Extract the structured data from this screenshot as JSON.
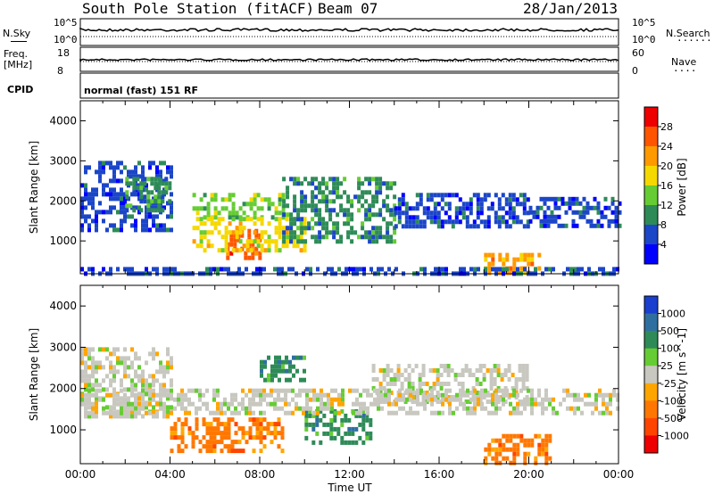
{
  "header": {
    "station_title": "South Pole Station (fitACF)",
    "beam": "Beam 07",
    "date": "28/Jan/2013"
  },
  "side_labels": {
    "nsky": "N.Sky",
    "nsearch": "N.Search",
    "freq_line1": "Freq.",
    "freq_line2": "[MHz]",
    "nave": "Nave",
    "cpid": "CPID",
    "nsky_ticks": [
      "10^5",
      "10^0"
    ],
    "nsearch_ticks": [
      "10^5",
      "10^0"
    ],
    "freq_ticks": [
      "18",
      "8"
    ],
    "nave_ticks": [
      "60",
      "0"
    ]
  },
  "mode_text": "normal (fast) 151 RF",
  "chart_data": [
    {
      "type": "heatmap",
      "panel": "power",
      "ylabel": "Slant Range [km]",
      "xlabel": "",
      "ylim": [
        180,
        4500
      ],
      "yticks": [
        1000,
        2000,
        3000,
        4000
      ],
      "colorbar_label": "Power [dB]",
      "colorbar_ticks": [
        "4",
        "8",
        "12",
        "16",
        "20",
        "24",
        "28"
      ],
      "colorbar_colors": [
        "#0000ff",
        "#1c46c8",
        "#2e8b57",
        "#66cc33",
        "#f5d800",
        "#ff9900",
        "#ff5500",
        "#ee0000"
      ],
      "regions": [
        {
          "t": [
            0,
            4
          ],
          "r": [
            1300,
            3000
          ],
          "level": 1
        },
        {
          "t": [
            2,
            4
          ],
          "r": [
            1800,
            2600
          ],
          "level": 2
        },
        {
          "t": [
            5,
            9
          ],
          "r": [
            1600,
            2200
          ],
          "level": 3
        },
        {
          "t": [
            6.5,
            8
          ],
          "r": [
            600,
            1300
          ],
          "level": 6
        },
        {
          "t": [
            5,
            10
          ],
          "r": [
            800,
            1600
          ],
          "level": 4
        },
        {
          "t": [
            9,
            14
          ],
          "r": [
            1000,
            2600
          ],
          "level": 2
        },
        {
          "t": [
            14,
            20
          ],
          "r": [
            1400,
            2200
          ],
          "level": 1
        },
        {
          "t": [
            18,
            20.5
          ],
          "r": [
            250,
            700
          ],
          "level": 5
        },
        {
          "t": [
            20,
            24
          ],
          "r": [
            1400,
            2100
          ],
          "level": 1
        },
        {
          "t": [
            0,
            24
          ],
          "r": [
            180,
            350
          ],
          "level": 1
        }
      ]
    },
    {
      "type": "heatmap",
      "panel": "velocity",
      "ylabel": "Slant Range [km]",
      "xlabel": "Time UT",
      "ylim": [
        180,
        4500
      ],
      "yticks": [
        1000,
        2000,
        3000,
        4000
      ],
      "xticks": [
        "00:00",
        "04:00",
        "08:00",
        "12:00",
        "16:00",
        "20:00",
        "00:00"
      ],
      "colorbar_label": "Velocity [m s^-1]",
      "colorbar_ticks": [
        "1000",
        "500",
        "100",
        "25",
        "-25",
        "-100",
        "-500",
        "-1000"
      ],
      "colorbar_colors": [
        "#1a3fcf",
        "#2f6fa0",
        "#2e8b57",
        "#66cc33",
        "#c8c8c0",
        "#ffa500",
        "#ff7700",
        "#ff4400",
        "#ee0000"
      ],
      "regions": [
        {
          "t": [
            0,
            4
          ],
          "r": [
            1300,
            3000
          ],
          "level": 4
        },
        {
          "t": [
            4,
            9
          ],
          "r": [
            500,
            1300
          ],
          "level": 6
        },
        {
          "t": [
            8,
            10
          ],
          "r": [
            2200,
            2800
          ],
          "level": 2
        },
        {
          "t": [
            10,
            13
          ],
          "r": [
            700,
            1500
          ],
          "level": 2
        },
        {
          "t": [
            13,
            20
          ],
          "r": [
            1700,
            2600
          ],
          "level": 4
        },
        {
          "t": [
            18,
            21
          ],
          "r": [
            200,
            900
          ],
          "level": 6
        },
        {
          "t": [
            0,
            24
          ],
          "r": [
            1400,
            2000
          ],
          "level": 4
        }
      ]
    }
  ]
}
